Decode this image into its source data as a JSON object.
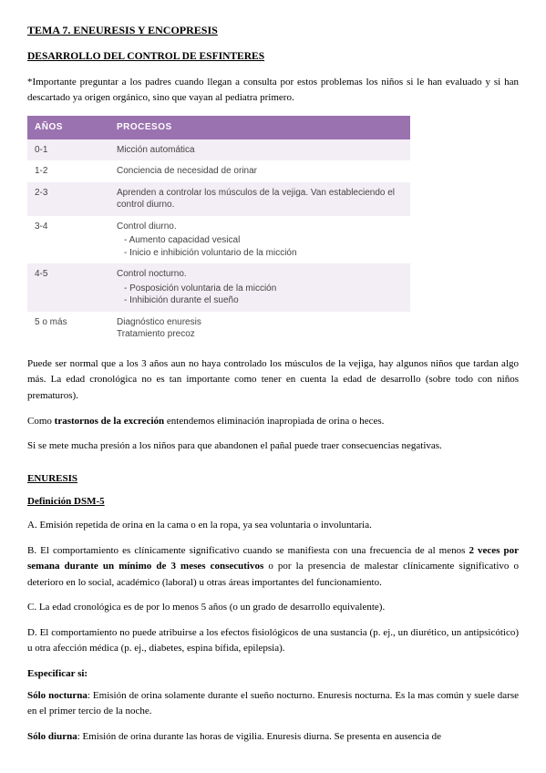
{
  "doc": {
    "title1": "TEMA 7. ENEURESIS Y ENCOPRESIS",
    "title2": "DESARROLLO DEL CONTROL DE ESFINTERES",
    "intro": "*Importante preguntar a los padres cuando llegan a consulta por estos problemas los niños si le han evaluado y si han descartado ya origen orgánico, sino que vayan al pediatra primero."
  },
  "table": {
    "header_years": "AÑOS",
    "header_proc": "PROCESOS",
    "rows": [
      {
        "years": "0-1",
        "proc": "Micción automática"
      },
      {
        "years": "1-2",
        "proc": "Conciencia de necesidad de orinar"
      },
      {
        "years": "2-3",
        "proc": "Aprenden a controlar los músculos de la vejiga. Van estableciendo el control diurno."
      },
      {
        "years": "3-4",
        "proc_main": "Control diurno.",
        "sub": [
          "Aumento capacidad vesical",
          "Inicio e inhibición voluntario de la micción"
        ]
      },
      {
        "years": "4-5",
        "proc_main": "Control nocturno.",
        "sub": [
          "Posposición voluntaria de la micción",
          "Inhibición durante el sueño"
        ]
      },
      {
        "years": "5 o más",
        "proc": "Diagnóstico enuresis\nTratamiento precoz"
      }
    ],
    "header_bg": "#9b72b0",
    "header_fg": "#ffffff",
    "row_even_bg": "#f3eef5",
    "row_odd_bg": "#ffffff"
  },
  "after_table": {
    "p1": "Puede ser normal que a los 3 años aun no haya controlado los músculos de la vejiga, hay algunos niños que tardan algo más. La edad cronológica no es tan importante como tener en cuenta la edad de desarrollo (sobre todo con niños prematuros).",
    "p2_pre": "Como ",
    "p2_bold": "trastornos de la excreción",
    "p2_post": " entendemos eliminación inapropiada de orina o heces.",
    "p3": "Si se mete mucha presión a los niños para que abandonen el pañal puede traer consecuencias negativas."
  },
  "enuresis": {
    "heading": "ENURESIS",
    "dsm_heading": "Definición DSM-5",
    "A": "A. Emisión repetida de orina en la cama o en la ropa, ya sea voluntaria o involuntaria.",
    "B_pre": "B. El comportamiento es clínicamente significativo cuando se manifiesta con una frecuencia de al menos ",
    "B_bold": "2 veces por semana durante un mínimo de 3 meses consecutivos",
    "B_post": " o por la presencia de malestar clínicamente significativo o deterioro en lo social, académico (laboral) u otras áreas importantes del funcionamiento.",
    "C": "C. La edad cronológica es de por lo menos 5 años (o un grado de desarrollo equivalente).",
    "D": "D. El comportamiento no puede atribuirse a los efectos fisiológicos de una sustancia (p. ej., un diurético, un antipsicótico) u otra afección médica (p. ej., diabetes, espina bífida, epilepsia).",
    "spec_label_pre": "Especificar",
    "spec_label_post": " si:",
    "noct_label": "Sólo nocturna",
    "noct_text": ": Emisión de orina solamente durante el sueño nocturno. Enuresis nocturna. Es la mas común y suele darse en el primer tercio de la noche.",
    "diur_label": "Sólo diurna",
    "diur_text": ": Emisión de orina durante las horas de vigilia. Enuresis diurna. Se presenta en ausencia de"
  }
}
